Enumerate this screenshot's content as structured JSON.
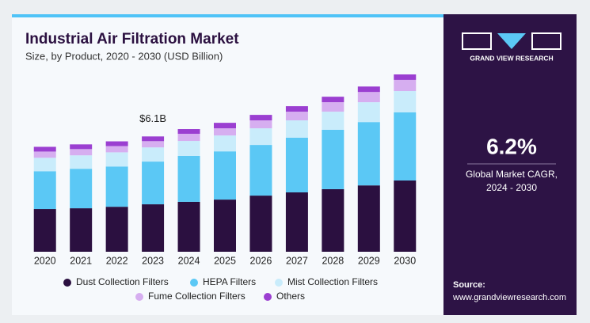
{
  "chart_data": {
    "type": "stacked-bar",
    "title": "Industrial Air Filtration Market",
    "subtitle": "Size, by Product, 2020 - 2030 (USD Billion)",
    "categories": [
      "2020",
      "2021",
      "2022",
      "2023",
      "2024",
      "2025",
      "2026",
      "2027",
      "2028",
      "2029",
      "2030"
    ],
    "series": [
      {
        "name": "Dust Collection Filters",
        "color": "#2b1040",
        "values": [
          2.26,
          2.3,
          2.38,
          2.51,
          2.64,
          2.76,
          2.97,
          3.14,
          3.31,
          3.51,
          3.77
        ]
      },
      {
        "name": "HEPA Filters",
        "color": "#5bc8f5",
        "values": [
          2.0,
          2.09,
          2.13,
          2.26,
          2.43,
          2.55,
          2.68,
          2.89,
          3.14,
          3.35,
          3.6
        ]
      },
      {
        "name": "Mist Collection Filters",
        "color": "#c9ecfb",
        "values": [
          0.71,
          0.71,
          0.75,
          0.75,
          0.79,
          0.84,
          0.88,
          0.92,
          0.96,
          1.05,
          1.13
        ]
      },
      {
        "name": "Fume Collection Filters",
        "color": "#d6aef0",
        "values": [
          0.33,
          0.33,
          0.33,
          0.33,
          0.38,
          0.38,
          0.42,
          0.46,
          0.5,
          0.54,
          0.59
        ]
      },
      {
        "name": "Others",
        "color": "#9b3fd1",
        "values": [
          0.25,
          0.25,
          0.25,
          0.25,
          0.25,
          0.29,
          0.29,
          0.29,
          0.29,
          0.29,
          0.29
        ]
      }
    ],
    "annotation": {
      "category": "2023",
      "text": "$6.1B"
    }
  },
  "sidebar": {
    "brand": "GRAND VIEW RESEARCH",
    "cagr": "6.2%",
    "cagr_label": [
      "Global Market CAGR,",
      "2024 - 2030"
    ],
    "source_label": "Source:",
    "source": "www.grandviewresearch.com"
  }
}
